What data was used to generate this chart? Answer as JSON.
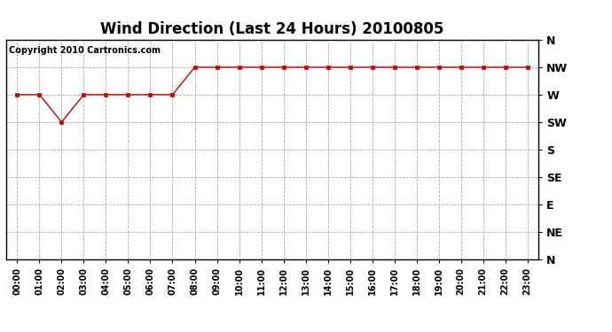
{
  "title": "Wind Direction (Last 24 Hours) 20100805",
  "copyright": "Copyright 2010 Cartronics.com",
  "x_labels": [
    "00:00",
    "01:00",
    "02:00",
    "03:00",
    "04:00",
    "05:00",
    "06:00",
    "07:00",
    "08:00",
    "09:00",
    "10:00",
    "11:00",
    "12:00",
    "13:00",
    "14:00",
    "15:00",
    "16:00",
    "17:00",
    "18:00",
    "19:00",
    "20:00",
    "21:00",
    "22:00",
    "23:00"
  ],
  "y_ticks": [
    0,
    45,
    90,
    135,
    180,
    225,
    270,
    315,
    360
  ],
  "y_tick_labels": [
    "N",
    "NE",
    "E",
    "SE",
    "S",
    "SW",
    "W",
    "NW",
    "N"
  ],
  "data_values": [
    270,
    270,
    225,
    270,
    270,
    270,
    270,
    270,
    315,
    315,
    315,
    315,
    315,
    315,
    315,
    315,
    315,
    315,
    315,
    315,
    315,
    315,
    315,
    315
  ],
  "line_color": "#cc0000",
  "marker": "s",
  "marker_size": 3,
  "background_color": "#ffffff",
  "plot_bg_color": "#ffffff",
  "grid_color": "#aaaaaa",
  "grid_style": "--",
  "title_fontsize": 12,
  "copyright_fontsize": 7,
  "tick_fontsize": 7,
  "ytick_fontsize": 9,
  "ylim": [
    0,
    360
  ],
  "figsize": [
    6.9,
    3.75
  ],
  "dpi": 100
}
